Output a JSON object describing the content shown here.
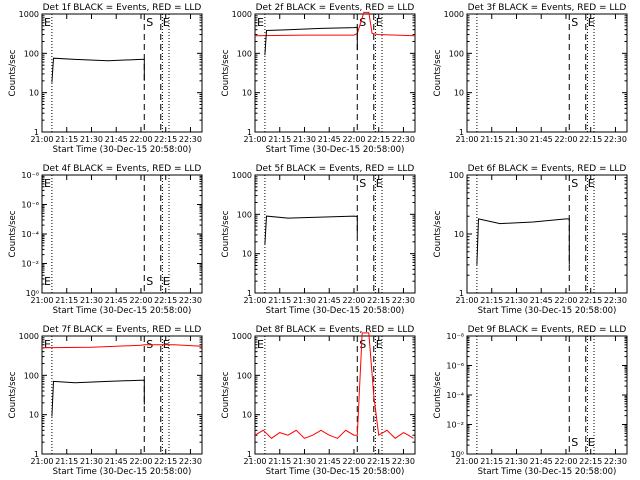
{
  "chart_data": [
    {
      "type": "line",
      "title": "Det 1f BLACK = Events, RED = LLD",
      "xlabel": "Start Time (30-Dec-15 20:58:00)",
      "ylabel": "Counts/sec",
      "yscale": "log",
      "xlim": [
        "21:00",
        "22:37"
      ],
      "ylim": [
        1,
        1000
      ],
      "xticks": [
        "21:00",
        "21:15",
        "21:30",
        "21:45",
        "22:00",
        "22:15",
        "22:30"
      ],
      "yticks": [
        "1",
        "10",
        "100",
        "1000"
      ],
      "markers": [
        {
          "label": "E",
          "x": "21:00",
          "style": "solid"
        },
        {
          "label": "S",
          "x": "22:02",
          "style": "dashed"
        },
        {
          "label": "E",
          "x": "22:12",
          "style": "dashed"
        }
      ],
      "dotted_lines": [
        "21:06",
        "22:13",
        "22:17"
      ],
      "series": [
        {
          "color": "#000000",
          "x": [
            "21:06",
            "21:07",
            "21:20",
            "21:40",
            "22:00",
            "22:02",
            "22:02"
          ],
          "y": [
            18,
            75,
            70,
            65,
            70,
            70,
            20
          ]
        }
      ]
    },
    {
      "type": "line",
      "title": "Det 2f BLACK = Events, RED = LLD",
      "xlabel": "Start Time (30-Dec-15 20:58:00)",
      "ylabel": "Counts/sec",
      "yscale": "log",
      "xlim": [
        "21:00",
        "22:37"
      ],
      "ylim": [
        1,
        1000
      ],
      "xticks": [
        "21:00",
        "21:15",
        "21:30",
        "21:45",
        "22:00",
        "22:15",
        "22:30"
      ],
      "yticks": [
        "1",
        "10",
        "100",
        "1000"
      ],
      "markers": [
        {
          "label": "E",
          "x": "21:00",
          "style": "solid"
        },
        {
          "label": "S",
          "x": "22:02",
          "style": "dashed"
        },
        {
          "label": "E",
          "x": "22:12",
          "style": "dashed"
        }
      ],
      "dotted_lines": [
        "21:06",
        "22:13",
        "22:17"
      ],
      "series": [
        {
          "color": "#ff0000",
          "x": [
            "21:00",
            "21:30",
            "22:00",
            "22:02",
            "22:06",
            "22:09",
            "22:11",
            "22:15",
            "22:37"
          ],
          "y": [
            280,
            290,
            290,
            320,
            1100,
            1100,
            320,
            300,
            280
          ]
        },
        {
          "color": "#000000",
          "x": [
            "21:06",
            "21:07",
            "21:20",
            "21:40",
            "22:00",
            "22:02",
            "22:02"
          ],
          "y": [
            90,
            380,
            400,
            430,
            450,
            460,
            120
          ]
        }
      ]
    },
    {
      "type": "line",
      "title": "Det 3f BLACK = Events, RED = LLD",
      "xlabel": "",
      "ylabel": "Counts/sec",
      "yscale": "log",
      "xlim": [
        "21:00",
        "22:37"
      ],
      "ylim": [
        1,
        1000
      ],
      "xticks": [
        "21:00",
        "21:15",
        "21:30",
        "21:45",
        "22:00",
        "22:15",
        "22:30"
      ],
      "yticks": [
        "1",
        "10",
        "100",
        "1000"
      ],
      "markers": [
        {
          "label": "S",
          "x": "22:02",
          "style": "dashed"
        },
        {
          "label": "E",
          "x": "22:12",
          "style": "dashed"
        }
      ],
      "dotted_lines": [
        "21:06",
        "22:13",
        "22:17"
      ],
      "series": []
    },
    {
      "type": "line",
      "title": "Det 4f BLACK = Events, RED = LLD",
      "xlabel": "Start Time (30-Dec-15 20:58:00)",
      "ylabel": "Counts/sec",
      "yscale": "log",
      "xlim": [
        "21:00",
        "22:37"
      ],
      "ylim": [
        1,
        1e-08
      ],
      "xticks": [
        "21:00",
        "21:15",
        "21:30",
        "21:45",
        "22:00",
        "22:15",
        "22:30"
      ],
      "yticks": [
        "10⁰",
        "10⁻²",
        "10⁻⁴",
        "10⁻⁶",
        "10⁻⁸"
      ],
      "markers": [
        {
          "label": "E",
          "x": "21:00",
          "style": "solid"
        },
        {
          "label": "S",
          "x": "22:02",
          "style": "dashed"
        },
        {
          "label": "E",
          "x": "22:12",
          "style": "dashed"
        }
      ],
      "dotted_lines": [
        "21:06",
        "22:13",
        "22:17"
      ],
      "series": []
    },
    {
      "type": "line",
      "title": "Det 5f BLACK = Events, RED = LLD",
      "xlabel": "Start Time (30-Dec-15 20:58:00)",
      "ylabel": "Counts/sec",
      "yscale": "log",
      "xlim": [
        "21:00",
        "22:37"
      ],
      "ylim": [
        1,
        1000
      ],
      "xticks": [
        "21:00",
        "21:15",
        "21:30",
        "21:45",
        "22:00",
        "22:15",
        "22:30"
      ],
      "yticks": [
        "1",
        "10",
        "100",
        "1000"
      ],
      "markers": [
        {
          "label": "S",
          "x": "22:02",
          "style": "dashed"
        },
        {
          "label": "E",
          "x": "22:12",
          "style": "dashed"
        }
      ],
      "dotted_lines": [
        "21:06",
        "22:13",
        "22:17"
      ],
      "series": [
        {
          "color": "#000000",
          "x": [
            "21:06",
            "21:07",
            "21:20",
            "21:40",
            "22:00",
            "22:02",
            "22:02"
          ],
          "y": [
            17,
            90,
            80,
            85,
            90,
            88,
            30
          ]
        }
      ]
    },
    {
      "type": "line",
      "title": "Det 6f BLACK = Events, RED = LLD",
      "xlabel": "Start Time (30-Dec-15 20:58:00)",
      "ylabel": "Counts/sec",
      "yscale": "log",
      "xlim": [
        "21:00",
        "22:37"
      ],
      "ylim": [
        1,
        100
      ],
      "xticks": [
        "21:00",
        "21:15",
        "21:30",
        "21:45",
        "22:00",
        "22:15",
        "22:30"
      ],
      "yticks": [
        "1",
        "10",
        "100"
      ],
      "markers": [
        {
          "label": "S",
          "x": "22:02",
          "style": "dashed"
        },
        {
          "label": "E",
          "x": "22:12",
          "style": "dashed"
        }
      ],
      "dotted_lines": [
        "21:06",
        "22:13",
        "22:17"
      ],
      "series": [
        {
          "color": "#000000",
          "x": [
            "21:06",
            "21:07",
            "21:20",
            "21:40",
            "22:00",
            "22:02",
            "22:02"
          ],
          "y": [
            3,
            18,
            15,
            16,
            18,
            18,
            3
          ]
        }
      ]
    },
    {
      "type": "line",
      "title": "Det 7f BLACK = Events, RED = LLD",
      "xlabel": "Start Time (30-Dec-15 20:58:00)",
      "ylabel": "Counts/sec",
      "yscale": "log",
      "xlim": [
        "21:00",
        "22:37"
      ],
      "ylim": [
        1,
        1000
      ],
      "xticks": [
        "21:00",
        "21:15",
        "21:30",
        "21:45",
        "22:00",
        "22:15",
        "22:30"
      ],
      "yticks": [
        "1",
        "10",
        "100",
        "1000"
      ],
      "markers": [
        {
          "label": "E",
          "x": "21:00",
          "style": "solid"
        },
        {
          "label": "S",
          "x": "22:02",
          "style": "dashed"
        },
        {
          "label": "E",
          "x": "22:12",
          "style": "dashed"
        }
      ],
      "dotted_lines": [
        "21:06",
        "22:13",
        "22:17"
      ],
      "series": [
        {
          "color": "#ff0000",
          "x": [
            "21:00",
            "21:30",
            "22:00",
            "22:02",
            "22:20",
            "22:37"
          ],
          "y": [
            500,
            520,
            580,
            600,
            600,
            550
          ]
        },
        {
          "color": "#000000",
          "x": [
            "21:06",
            "21:07",
            "21:20",
            "21:40",
            "22:00",
            "22:02",
            "22:02"
          ],
          "y": [
            9,
            70,
            65,
            70,
            75,
            75,
            18
          ]
        }
      ]
    },
    {
      "type": "line",
      "title": "Det 8f BLACK = Events, RED = LLD",
      "xlabel": "Start Time (30-Dec-15 20:58:00)",
      "ylabel": "Counts/sec",
      "yscale": "log",
      "xlim": [
        "21:00",
        "22:37"
      ],
      "ylim": [
        1,
        1000
      ],
      "xticks": [
        "21:00",
        "21:15",
        "21:30",
        "21:45",
        "22:00",
        "22:15",
        "22:30"
      ],
      "yticks": [
        "1",
        "10",
        "100",
        "1000"
      ],
      "markers": [
        {
          "label": "E",
          "x": "21:00",
          "style": "solid"
        },
        {
          "label": "S",
          "x": "22:02",
          "style": "dashed"
        },
        {
          "label": "E",
          "x": "22:12",
          "style": "dashed"
        }
      ],
      "dotted_lines": [
        "21:06",
        "22:13",
        "22:17"
      ],
      "series": [
        {
          "color": "#ff0000",
          "x": [
            "21:00",
            "21:05",
            "21:10",
            "21:15",
            "21:20",
            "21:25",
            "21:30",
            "21:35",
            "21:40",
            "21:45",
            "21:50",
            "21:55",
            "22:00",
            "22:02",
            "22:05",
            "22:09",
            "22:12",
            "22:15",
            "22:20",
            "22:25",
            "22:30",
            "22:33",
            "22:36"
          ],
          "y": [
            3,
            4,
            2.5,
            3.5,
            3,
            4,
            2.5,
            3,
            4,
            3,
            2.5,
            4,
            3,
            3,
            1200,
            1200,
            30,
            3,
            4,
            2.5,
            3.5,
            3,
            2.5
          ]
        }
      ]
    },
    {
      "type": "line",
      "title": "Det 9f BLACK = Events, RED = LLD",
      "xlabel": "Start Time (30-Dec-15 20:58:00)",
      "ylabel": "Counts/sec",
      "yscale": "log",
      "xlim": [
        "21:00",
        "22:37"
      ],
      "ylim": [
        1,
        1e-08
      ],
      "xticks": [
        "21:00",
        "21:15",
        "21:30",
        "21:45",
        "22:00",
        "22:15",
        "22:30"
      ],
      "yticks": [
        "10⁰",
        "10⁻²",
        "10⁻⁴",
        "10⁻⁶",
        "10⁻⁸"
      ],
      "markers": [
        {
          "label": "S",
          "x": "22:02",
          "style": "dashed"
        },
        {
          "label": "E",
          "x": "22:12",
          "style": "dashed"
        }
      ],
      "dotted_lines": [
        "21:06",
        "22:13",
        "22:17"
      ],
      "series": []
    }
  ]
}
